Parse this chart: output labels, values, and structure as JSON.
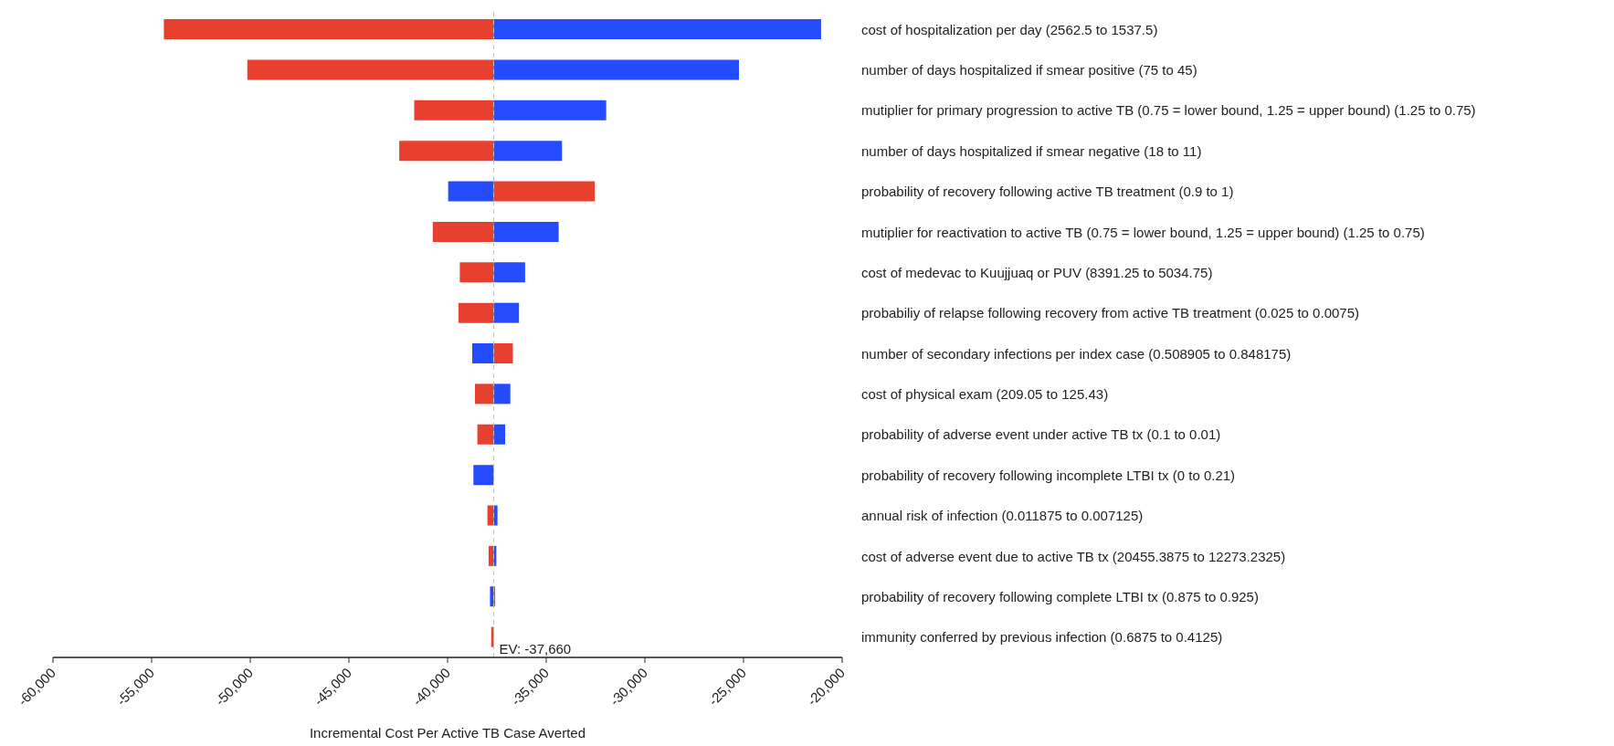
{
  "chart_data": {
    "type": "bar",
    "orientation": "horizontal",
    "xlabel": "Incremental Cost Per Active TB Case Averted",
    "categories": [
      "cost of hospitalization per day (2562.5 to 1537.5)",
      "number of days hospitalized if smear positive (75 to 45)",
      "mutiplier for primary progression to active TB (0.75 = lower bound, 1.25 = upper bound) (1.25 to 0.75)",
      "number of days hospitalized if smear negative (18 to 11)",
      "probability of recovery following active TB treatment (0.9 to 1)",
      "mutiplier for reactivation to active TB (0.75 = lower bound, 1.25 = upper bound) (1.25 to 0.75)",
      "cost of medevac to Kuujjuaq or PUV (8391.25 to 5034.75)",
      "probabiliy of relapse following recovery from active TB treatment (0.025 to 0.0075)",
      "number of secondary infections per index case (0.508905 to 0.848175)",
      "cost of physical exam (209.05 to 125.43)",
      "probability of adverse event under active TB tx (0.1 to 0.01)",
      "probability of recovery following incomplete LTBI tx (0 to 0.21)",
      "annual risk of infection (0.011875 to 0.007125)",
      "cost of adverse event due to active TB tx (20455.3875 to 12273.2325)",
      "probability of recovery following complete LTBI tx (0.875 to 0.925)",
      "immunity conferred by previous infection (0.6875 to 0.4125)"
    ],
    "series": [
      {
        "base": [
          -54380,
          -50150,
          -41690,
          -42450,
          -39970,
          -40750,
          -39380,
          -39450,
          -38750,
          -38610,
          -38490,
          -38690,
          -37980,
          -37920,
          -37850,
          -37790
        ],
        "values": [
          16720,
          12490,
          4030,
          4790,
          2310,
          3090,
          1720,
          1790,
          1090,
          950,
          830,
          1030,
          320,
          260,
          190,
          130
        ],
        "colors": [
          "#e8402f",
          "#e8402f",
          "#e8402f",
          "#e8402f",
          "#244cfd",
          "#e8402f",
          "#e8402f",
          "#e8402f",
          "#244cfd",
          "#e8402f",
          "#e8402f",
          "#244cfd",
          "#e8402f",
          "#e8402f",
          "#244cfd",
          "#e8402f"
        ]
      },
      {
        "base": [
          -37660,
          -37660,
          -37660,
          -37660,
          -37660,
          -37660,
          -37660,
          -37660,
          -37660,
          -37660,
          -37660,
          null,
          -37660,
          -37660,
          -37660,
          null
        ],
        "values": [
          16590,
          12430,
          5700,
          3460,
          5120,
          3290,
          1590,
          1280,
          970,
          840,
          580,
          null,
          190,
          130,
          70,
          null
        ],
        "colors": [
          "#244cfd",
          "#244cfd",
          "#244cfd",
          "#244cfd",
          "#e8402f",
          "#244cfd",
          "#244cfd",
          "#244cfd",
          "#e8402f",
          "#244cfd",
          "#244cfd",
          "#244cfd",
          "#244cfd",
          "#244cfd",
          "#e8402f",
          "#244cfd"
        ]
      }
    ],
    "xlim": [
      -60000,
      -20000
    ],
    "xticks": [
      {
        "value": -60000,
        "label": "-60,000"
      },
      {
        "value": -55000,
        "label": "-55,000"
      },
      {
        "value": -50000,
        "label": "-50,000"
      },
      {
        "value": -45000,
        "label": "-45,000"
      },
      {
        "value": -40000,
        "label": "-40,000"
      },
      {
        "value": -35000,
        "label": "-35,000"
      },
      {
        "value": -30000,
        "label": "-30,000"
      },
      {
        "value": -25000,
        "label": "-25,000"
      },
      {
        "value": -20000,
        "label": "-20,000"
      }
    ],
    "ref_lines": [
      {
        "axis": "x",
        "value": -37660,
        "label": "EV: -37,660",
        "color": "#c0c0c0",
        "line_style": "dashed"
      }
    ],
    "grid": false,
    "legend": false
  }
}
